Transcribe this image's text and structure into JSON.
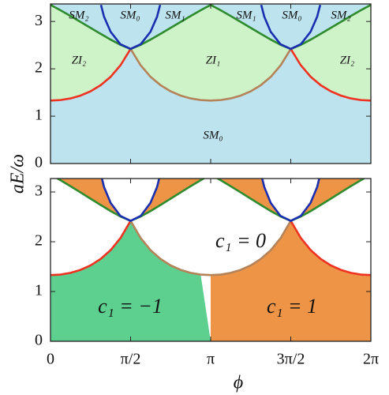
{
  "chart_data": [
    {
      "type": "line",
      "ylabel": "aE/ω",
      "xlim": [
        0,
        6.2832
      ],
      "ylim": [
        0,
        3.37
      ],
      "yticks": [
        0,
        1,
        2,
        3
      ],
      "fill_colors": {
        "below": "#bde3ee",
        "between": "#cff3c8"
      },
      "series": [
        {
          "color": "#ee3322",
          "x": [
            0,
            0.196,
            0.393,
            0.589,
            0.785,
            0.982,
            1.178,
            1.374,
            1.571
          ],
          "values": [
            1.33,
            1.341,
            1.375,
            1.435,
            1.525,
            1.653,
            1.83,
            2.077,
            2.42
          ]
        },
        {
          "color": "#b5835a",
          "x": [
            1.571,
            1.767,
            1.963,
            2.16,
            2.356,
            2.553,
            2.749,
            2.945,
            3.142,
            3.338,
            3.534,
            3.731,
            3.927,
            4.123,
            4.32,
            4.516,
            4.712
          ],
          "values": [
            2.42,
            2.077,
            1.83,
            1.653,
            1.525,
            1.435,
            1.375,
            1.341,
            1.33,
            1.341,
            1.375,
            1.435,
            1.525,
            1.653,
            1.83,
            2.077,
            2.42
          ]
        },
        {
          "color": "#ee3322",
          "x": [
            4.712,
            4.909,
            5.105,
            5.301,
            5.498,
            5.694,
            5.89,
            6.087,
            6.283
          ],
          "values": [
            2.42,
            2.077,
            1.83,
            1.653,
            1.525,
            1.435,
            1.375,
            1.341,
            1.33
          ]
        },
        {
          "color": "#2e8b2e",
          "x": [
            0,
            0.196,
            0.393,
            0.589,
            0.785,
            0.982,
            1.178,
            1.374,
            1.571,
            1.767,
            1.963,
            2.16,
            2.356,
            2.553,
            2.749,
            2.945,
            3.142,
            3.338,
            3.534,
            3.731,
            3.927,
            4.123,
            4.32,
            4.516,
            4.712,
            4.909,
            5.105,
            5.301,
            5.498,
            5.694,
            5.89,
            6.087,
            6.283
          ],
          "values": [
            3.35,
            3.237,
            3.116,
            2.991,
            2.865,
            2.74,
            2.618,
            2.506,
            2.42,
            2.506,
            2.618,
            2.74,
            2.865,
            2.991,
            3.116,
            3.237,
            3.35,
            3.237,
            3.116,
            2.991,
            2.865,
            2.74,
            2.618,
            2.506,
            2.42,
            2.506,
            2.618,
            2.74,
            2.865,
            2.991,
            3.116,
            3.237,
            3.35
          ]
        },
        {
          "color": "#1a2fb0",
          "x": [
            0.99,
            1.05,
            1.18,
            1.37,
            1.571,
            1.77,
            1.96,
            2.09,
            2.15
          ],
          "values": [
            3.35,
            3.1,
            2.78,
            2.52,
            2.42,
            2.52,
            2.78,
            3.1,
            3.35
          ]
        },
        {
          "color": "#1a2fb0",
          "x": [
            4.133,
            4.193,
            4.32,
            4.51,
            4.712,
            4.91,
            5.1,
            5.23,
            5.29
          ],
          "values": [
            3.35,
            3.1,
            2.78,
            2.52,
            2.42,
            2.52,
            2.78,
            3.1,
            3.35
          ]
        }
      ],
      "annotations": [
        "SM₂",
        "SM₀",
        "SM₁",
        "SM₁",
        "SM₀",
        "SM₂",
        "ZI₂",
        "ZI₁",
        "ZI₂",
        "SM₀"
      ]
    },
    {
      "type": "line",
      "xlabel": "ϕ",
      "xlim": [
        0,
        6.2832
      ],
      "ylim": [
        0,
        3.27
      ],
      "yticks": [
        0,
        1,
        2,
        3
      ],
      "xticks": [
        0,
        {
          "value": 1.5708,
          "label": "π/2"
        },
        {
          "value": 3.1416,
          "label": "π"
        },
        {
          "value": 4.7124,
          "label": "3π/2"
        },
        {
          "value": 6.2832,
          "label": "2π"
        }
      ],
      "fill_colors": {
        "left": "#5dcf8f",
        "right": "#ee9446",
        "above": "#ee9446",
        "inside": "#ffffff"
      },
      "series": [
        {
          "color": "#ee3322",
          "x": [
            0,
            0.196,
            0.393,
            0.589,
            0.785,
            0.982,
            1.178,
            1.374,
            1.571
          ],
          "values": [
            1.33,
            1.341,
            1.375,
            1.435,
            1.525,
            1.653,
            1.83,
            2.077,
            2.42
          ]
        },
        {
          "color": "#b5835a",
          "x": [
            1.571,
            1.767,
            1.963,
            2.16,
            2.356,
            2.553,
            2.749,
            2.945,
            3.142,
            3.338,
            3.534,
            3.731,
            3.927,
            4.123,
            4.32,
            4.516,
            4.712
          ],
          "values": [
            2.42,
            2.077,
            1.83,
            1.653,
            1.525,
            1.435,
            1.375,
            1.341,
            1.33,
            1.341,
            1.375,
            1.435,
            1.525,
            1.653,
            1.83,
            2.077,
            2.42
          ]
        },
        {
          "color": "#ee3322",
          "x": [
            4.712,
            4.909,
            5.105,
            5.301,
            5.498,
            5.694,
            5.89,
            6.087,
            6.283
          ],
          "values": [
            2.42,
            2.077,
            1.83,
            1.653,
            1.525,
            1.435,
            1.375,
            1.341,
            1.33
          ]
        },
        {
          "color": "#2e8b2e",
          "x": [
            0,
            0.196,
            0.393,
            0.589,
            0.785,
            0.982,
            1.178,
            1.374,
            1.571,
            1.767,
            1.963,
            2.16,
            2.356,
            2.553,
            2.749,
            2.945,
            3.142,
            3.338,
            3.534,
            3.731,
            3.927,
            4.123,
            4.32,
            4.516,
            4.712,
            4.909,
            5.105,
            5.301,
            5.498,
            5.694,
            5.89,
            6.087,
            6.283
          ],
          "values": [
            3.35,
            3.237,
            3.116,
            2.991,
            2.865,
            2.74,
            2.618,
            2.506,
            2.42,
            2.506,
            2.618,
            2.74,
            2.865,
            2.991,
            3.116,
            3.237,
            3.35,
            3.237,
            3.116,
            2.991,
            2.865,
            2.74,
            2.618,
            2.506,
            2.42,
            2.506,
            2.618,
            2.74,
            2.865,
            2.991,
            3.116,
            3.237,
            3.35
          ]
        },
        {
          "color": "#1a2fb0",
          "x": [
            0.99,
            1.05,
            1.18,
            1.37,
            1.571,
            1.77,
            1.96,
            2.09,
            2.15
          ],
          "values": [
            3.35,
            3.1,
            2.78,
            2.52,
            2.42,
            2.52,
            2.78,
            3.1,
            3.35
          ]
        },
        {
          "color": "#1a2fb0",
          "x": [
            4.133,
            4.193,
            4.32,
            4.51,
            4.712,
            4.91,
            5.1,
            5.23,
            5.29
          ],
          "values": [
            3.35,
            3.1,
            2.78,
            2.52,
            2.42,
            2.52,
            2.78,
            3.1,
            3.35
          ]
        }
      ],
      "annotations": [
        "c₁ = 0",
        "c₁ = −1",
        "c₁ = 1"
      ]
    }
  ]
}
